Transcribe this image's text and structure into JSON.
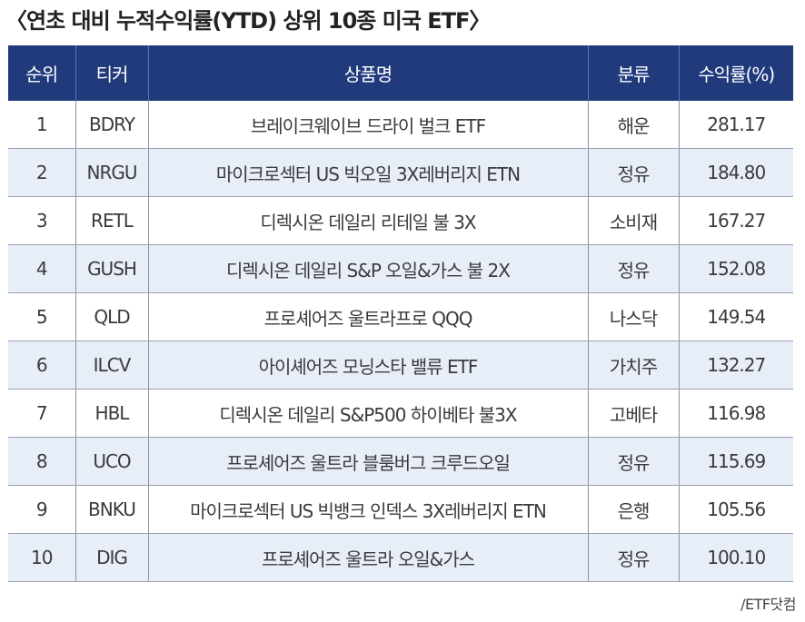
{
  "title": "〈연초 대비 누적수익률(YTD) 상위 10종 미국 ETF〉",
  "columns": [
    "순위",
    "티커",
    "상품명",
    "분류",
    "수익률(%)"
  ],
  "rows": [
    {
      "rank": "1",
      "ticker": "BDRY",
      "name": "브레이크웨이브 드라이 벌크 ETF",
      "category": "해운",
      "return": "281.17"
    },
    {
      "rank": "2",
      "ticker": "NRGU",
      "name": "마이크로섹터 US 빅오일 3X레버리지 ETN",
      "category": "정유",
      "return": "184.80"
    },
    {
      "rank": "3",
      "ticker": "RETL",
      "name": "디렉시온 데일리 리테일 불 3X",
      "category": "소비재",
      "return": "167.27"
    },
    {
      "rank": "4",
      "ticker": "GUSH",
      "name": "디렉시온 데일리 S&P 오일&가스 불 2X",
      "category": "정유",
      "return": "152.08"
    },
    {
      "rank": "5",
      "ticker": "QLD",
      "name": "프로셰어즈 울트라프로 QQQ",
      "category": "나스닥",
      "return": "149.54"
    },
    {
      "rank": "6",
      "ticker": "ILCV",
      "name": "아이셰어즈 모닝스타 밸류 ETF",
      "category": "가치주",
      "return": "132.27"
    },
    {
      "rank": "7",
      "ticker": "HBL",
      "name": "디렉시온 데일리 S&P500 하이베타 불3X",
      "category": "고베타",
      "return": "116.98"
    },
    {
      "rank": "8",
      "ticker": "UCO",
      "name": "프로셰어즈 울트라 블룸버그 크루드오일",
      "category": "정유",
      "return": "115.69"
    },
    {
      "rank": "9",
      "ticker": "BNKU",
      "name": "마이크로섹터 US 빅뱅크 인덱스 3X레버리지 ETN",
      "category": "은행",
      "return": "105.56"
    },
    {
      "rank": "10",
      "ticker": "DIG",
      "name": "프로셰어즈 울트라 오일&가스",
      "category": "정유",
      "return": "100.10"
    }
  ],
  "source": "/ETF닷컴",
  "colors": {
    "header_bg": "#203a7c",
    "alt_row_bg": "#e8eef8"
  }
}
